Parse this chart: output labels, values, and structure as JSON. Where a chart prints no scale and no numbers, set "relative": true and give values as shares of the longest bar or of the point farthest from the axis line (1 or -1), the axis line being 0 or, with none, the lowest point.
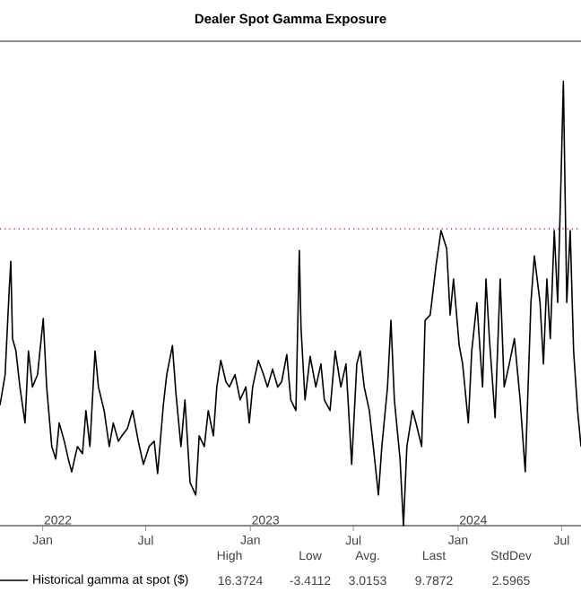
{
  "chart_data": {
    "type": "line",
    "title": "Dealer Spot Gamma Exposure",
    "relative": true,
    "x": [
      "2021-10-18",
      "2021-10-27",
      "2021-11-03",
      "2021-11-06",
      "2021-11-09",
      "2021-11-15",
      "2021-11-22",
      "2021-12-01",
      "2021-12-07",
      "2021-12-14",
      "2021-12-23",
      "2022-01-02",
      "2022-01-08",
      "2022-01-17",
      "2022-01-24",
      "2022-01-30",
      "2022-02-08",
      "2022-02-15",
      "2022-02-21",
      "2022-03-03",
      "2022-03-12",
      "2022-03-18",
      "2022-03-25",
      "2022-04-03",
      "2022-04-09",
      "2022-04-19",
      "2022-04-28",
      "2022-05-05",
      "2022-05-14",
      "2022-05-20",
      "2022-05-30",
      "2022-06-08",
      "2022-06-18",
      "2022-06-27",
      "2022-07-07",
      "2022-07-16",
      "2022-07-22",
      "2022-08-01",
      "2022-08-07",
      "2022-08-17",
      "2022-08-23",
      "2022-09-01",
      "2022-09-08",
      "2022-09-17",
      "2022-09-27",
      "2022-10-03",
      "2022-10-12",
      "2022-10-19",
      "2022-10-28",
      "2022-11-03",
      "2022-11-10",
      "2022-11-19",
      "2022-11-25",
      "2022-12-05",
      "2022-12-14",
      "2022-12-24",
      "2022-12-30",
      "2023-01-05",
      "2023-01-15",
      "2023-01-24",
      "2023-01-31",
      "2023-02-09",
      "2023-02-18",
      "2023-02-25",
      "2023-03-06",
      "2023-03-13",
      "2023-03-22",
      "2023-03-28",
      "2023-03-31",
      "2023-04-07",
      "2023-04-16",
      "2023-04-26",
      "2023-05-05",
      "2023-05-11",
      "2023-05-21",
      "2023-05-30",
      "2023-06-09",
      "2023-06-18",
      "2023-06-28",
      "2023-07-07",
      "2023-07-13",
      "2023-07-20",
      "2023-07-29",
      "2023-08-05",
      "2023-08-14",
      "2023-08-20",
      "2023-08-30",
      "2023-09-05",
      "2023-09-11",
      "2023-09-21",
      "2023-09-27",
      "2023-10-03",
      "2023-10-13",
      "2023-10-19",
      "2023-10-29",
      "2023-11-04",
      "2023-11-13",
      "2023-11-23",
      "2023-12-02",
      "2023-12-12",
      "2023-12-18",
      "2023-12-24",
      "2024-01-03",
      "2024-01-09",
      "2024-01-19",
      "2024-01-25",
      "2024-02-03",
      "2024-02-13",
      "2024-02-19",
      "2024-02-25",
      "2024-03-06",
      "2024-03-15",
      "2024-03-22",
      "2024-03-31",
      "2024-04-09",
      "2024-04-19",
      "2024-04-28",
      "2024-05-08",
      "2024-05-14",
      "2024-05-24",
      "2024-05-30",
      "2024-06-05",
      "2024-06-11",
      "2024-06-18",
      "2024-06-24",
      "2024-06-30",
      "2024-07-04",
      "2024-07-10",
      "2024-07-16",
      "2024-07-22",
      "2024-07-29",
      "2024-08-04"
    ],
    "series": [
      {
        "name": "Historical gamma at spot ($)",
        "color": "#000000",
        "values": [
          0.271,
          0.34,
          0.526,
          0.595,
          0.421,
          0.393,
          0.312,
          0.231,
          0.393,
          0.312,
          0.34,
          0.466,
          0.312,
          0.178,
          0.15,
          0.231,
          0.19,
          0.15,
          0.121,
          0.178,
          0.162,
          0.259,
          0.178,
          0.393,
          0.312,
          0.259,
          0.178,
          0.231,
          0.19,
          0.202,
          0.219,
          0.259,
          0.19,
          0.138,
          0.178,
          0.19,
          0.117,
          0.271,
          0.34,
          0.405,
          0.3,
          0.178,
          0.283,
          0.097,
          0.069,
          0.202,
          0.178,
          0.259,
          0.202,
          0.312,
          0.372,
          0.324,
          0.312,
          0.34,
          0.283,
          0.312,
          0.231,
          0.312,
          0.372,
          0.34,
          0.312,
          0.352,
          0.312,
          0.324,
          0.385,
          0.283,
          0.259,
          0.619,
          0.445,
          0.283,
          0.381,
          0.312,
          0.364,
          0.283,
          0.259,
          0.393,
          0.312,
          0.364,
          0.138,
          0.364,
          0.393,
          0.312,
          0.259,
          0.178,
          0.069,
          0.178,
          0.312,
          0.462,
          0.283,
          0.15,
          0,
          0.178,
          0.259,
          0.231,
          0.178,
          0.462,
          0.474,
          0.583,
          0.664,
          0.623,
          0.474,
          0.555,
          0.405,
          0.364,
          0.231,
          0.393,
          0.502,
          0.312,
          0.555,
          0.421,
          0.243,
          0.555,
          0.312,
          0.364,
          0.421,
          0.283,
          0.121,
          0.502,
          0.607,
          0.502,
          0.364,
          0.555,
          0.421,
          0.664,
          0.502,
          0.785,
          1,
          0.502,
          0.664,
          0.393,
          0.259,
          0.178
        ]
      }
    ],
    "xlim": [
      "2021-10-18",
      "2024-08-04"
    ],
    "xticks": [
      {
        "value": "2022-01-01",
        "label": "Jan"
      },
      {
        "value": "2022-07-01",
        "label": "Jul"
      },
      {
        "value": "2023-01-01",
        "label": "Jan"
      },
      {
        "value": "2023-07-01",
        "label": "Jul"
      },
      {
        "value": "2024-01-01",
        "label": "Jan"
      },
      {
        "value": "2024-07-01",
        "label": "Jul"
      }
    ],
    "ref_lines": [
      {
        "axis": "y",
        "value": 0.668,
        "color": "#c00000",
        "line_style": "dotted"
      }
    ],
    "legend": "bottom left",
    "annotations": [
      "2022",
      "2023",
      "2024",
      "High",
      "Low",
      "Avg.",
      "Last",
      "StdDev",
      "16.3724",
      "-3.4112",
      "3.0153",
      "9.7872",
      "2.5965"
    ]
  }
}
